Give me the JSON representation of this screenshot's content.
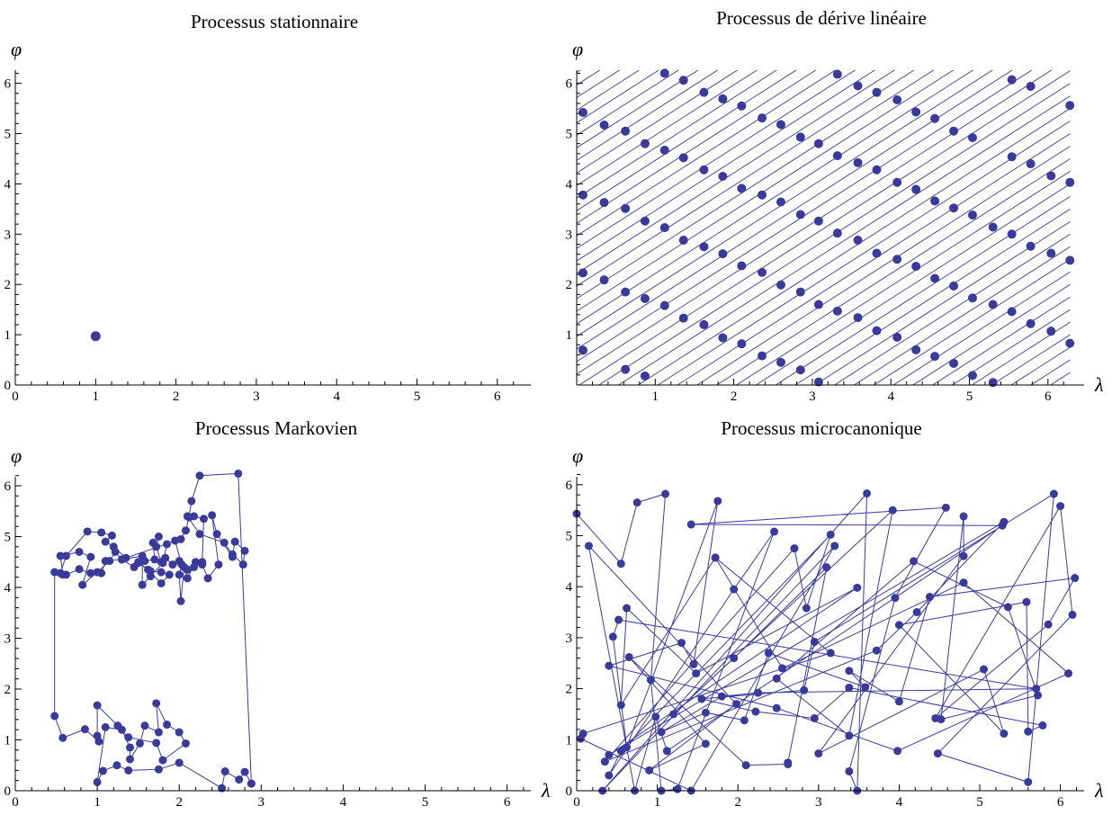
{
  "colors": {
    "series": "#3a3a9a",
    "axis": "#000000"
  },
  "chart_data": [
    {
      "type": "scatter",
      "title": "Processus stationnaire",
      "xlabel": "",
      "ylabel": "φ",
      "xlim": [
        0,
        6.283
      ],
      "ylim": [
        0,
        6.283
      ],
      "xticks": [
        "0",
        "1",
        "2",
        "3",
        "4",
        "5",
        "6"
      ],
      "yticks": [
        "0",
        "1",
        "2",
        "3",
        "4",
        "5",
        "6"
      ],
      "connected": false,
      "points": [
        [
          1.0,
          0.97
        ]
      ]
    },
    {
      "type": "scatter",
      "title": "Processus de dérive linéaire",
      "xlabel": "λ",
      "ylabel": "φ",
      "xlim": [
        0,
        6.283
      ],
      "ylim": [
        0,
        6.283
      ],
      "xticks": [
        "1",
        "2",
        "3",
        "4",
        "5",
        "6"
      ],
      "yticks": [
        "1",
        "2",
        "3",
        "4",
        "5",
        "6"
      ],
      "connected": false,
      "drift_slope": 1,
      "drift_step": 0.25,
      "points": [
        [
          0.08,
          5.42
        ],
        [
          0.08,
          3.78
        ],
        [
          0.08,
          2.23
        ],
        [
          0.08,
          0.69
        ],
        [
          0.35,
          5.17
        ],
        [
          0.35,
          3.63
        ],
        [
          0.35,
          2.09
        ],
        [
          0.62,
          5.05
        ],
        [
          0.62,
          3.51
        ],
        [
          0.62,
          1.85
        ],
        [
          0.62,
          0.31
        ],
        [
          0.87,
          4.8
        ],
        [
          0.87,
          3.26
        ],
        [
          0.87,
          1.72
        ],
        [
          0.87,
          0.18
        ],
        [
          1.12,
          6.2
        ],
        [
          1.12,
          4.67
        ],
        [
          1.12,
          3.13
        ],
        [
          1.12,
          1.58
        ],
        [
          1.36,
          6.06
        ],
        [
          1.36,
          4.52
        ],
        [
          1.36,
          2.88
        ],
        [
          1.36,
          1.33
        ],
        [
          1.62,
          5.82
        ],
        [
          1.62,
          4.28
        ],
        [
          1.62,
          2.75
        ],
        [
          1.62,
          1.2
        ],
        [
          1.86,
          5.69
        ],
        [
          1.86,
          4.15
        ],
        [
          1.86,
          2.61
        ],
        [
          1.86,
          0.94
        ],
        [
          2.1,
          5.55
        ],
        [
          2.1,
          3.91
        ],
        [
          2.1,
          2.37
        ],
        [
          2.1,
          0.82
        ],
        [
          2.36,
          5.31
        ],
        [
          2.36,
          3.78
        ],
        [
          2.36,
          2.24
        ],
        [
          2.36,
          0.58
        ],
        [
          2.6,
          5.18
        ],
        [
          2.6,
          3.64
        ],
        [
          2.6,
          1.99
        ],
        [
          2.6,
          0.45
        ],
        [
          2.85,
          4.93
        ],
        [
          2.85,
          3.39
        ],
        [
          2.85,
          1.85
        ],
        [
          2.85,
          0.3
        ],
        [
          3.08,
          4.8
        ],
        [
          3.08,
          3.26
        ],
        [
          3.08,
          1.6
        ],
        [
          3.08,
          0.06
        ],
        [
          3.32,
          6.18
        ],
        [
          3.32,
          4.56
        ],
        [
          3.32,
          3.02
        ],
        [
          3.32,
          1.47
        ],
        [
          3.58,
          5.95
        ],
        [
          3.58,
          4.42
        ],
        [
          3.58,
          2.88
        ],
        [
          3.58,
          1.34
        ],
        [
          3.82,
          5.82
        ],
        [
          3.82,
          4.28
        ],
        [
          3.82,
          2.62
        ],
        [
          3.82,
          1.08
        ],
        [
          4.08,
          5.67
        ],
        [
          4.08,
          4.03
        ],
        [
          4.08,
          2.5
        ],
        [
          4.08,
          0.95
        ],
        [
          4.32,
          5.43
        ],
        [
          4.32,
          3.89
        ],
        [
          4.32,
          2.36
        ],
        [
          4.32,
          0.7
        ],
        [
          4.56,
          5.3
        ],
        [
          4.56,
          3.66
        ],
        [
          4.56,
          2.12
        ],
        [
          4.56,
          0.57
        ],
        [
          4.8,
          5.05
        ],
        [
          4.8,
          3.52
        ],
        [
          4.8,
          1.97
        ],
        [
          4.8,
          0.43
        ],
        [
          5.04,
          4.92
        ],
        [
          5.04,
          3.38
        ],
        [
          5.04,
          1.73
        ],
        [
          5.04,
          0.19
        ],
        [
          5.3,
          3.14
        ],
        [
          5.3,
          1.6
        ],
        [
          5.3,
          0.05
        ],
        [
          5.54,
          6.07
        ],
        [
          5.54,
          4.54
        ],
        [
          5.54,
          3.0
        ],
        [
          5.54,
          1.46
        ],
        [
          5.78,
          5.94
        ],
        [
          5.78,
          4.4
        ],
        [
          5.78,
          2.76
        ],
        [
          5.78,
          1.22
        ],
        [
          6.04,
          4.16
        ],
        [
          6.04,
          2.62
        ],
        [
          6.04,
          1.07
        ],
        [
          6.28,
          5.56
        ],
        [
          6.28,
          4.03
        ],
        [
          6.28,
          2.48
        ],
        [
          6.28,
          0.83
        ]
      ]
    },
    {
      "type": "line",
      "title": "Processus Markovien",
      "xlabel": "λ",
      "ylabel": "φ",
      "xlim": [
        0,
        6.283
      ],
      "ylim": [
        0,
        6.283
      ],
      "xticks": [
        "0",
        "1",
        "2",
        "3",
        "4",
        "5",
        "6"
      ],
      "yticks": [
        "0",
        "1",
        "2",
        "3",
        "4",
        "5",
        "6"
      ],
      "connected": true,
      "points": [
        [
          2.88,
          0.14
        ],
        [
          2.8,
          0.37
        ],
        [
          2.73,
          0.22
        ],
        [
          2.56,
          0.38
        ],
        [
          2.52,
          0.05
        ],
        [
          2.0,
          0.55
        ],
        [
          1.75,
          0.42
        ],
        [
          1.38,
          0.4
        ],
        [
          1.24,
          0.5
        ],
        [
          1.07,
          0.39
        ],
        [
          1.0,
          0.17
        ],
        [
          1.1,
          1.25
        ],
        [
          1.3,
          1.2
        ],
        [
          1.4,
          0.85
        ],
        [
          1.4,
          0.62
        ],
        [
          1.52,
          0.93
        ],
        [
          1.58,
          1.28
        ],
        [
          1.75,
          1.15
        ],
        [
          1.72,
          1.72
        ],
        [
          1.85,
          1.3
        ],
        [
          2.0,
          1.15
        ],
        [
          2.08,
          0.93
        ],
        [
          1.8,
          0.6
        ],
        [
          1.72,
          0.94
        ],
        [
          1.38,
          1.05
        ],
        [
          1.25,
          1.28
        ],
        [
          1.0,
          1.68
        ],
        [
          1.0,
          1.08
        ],
        [
          1.02,
          0.97
        ],
        [
          0.85,
          1.21
        ],
        [
          0.58,
          1.04
        ],
        [
          0.48,
          1.47
        ],
        [
          0.48,
          4.3
        ],
        [
          0.58,
          4.25
        ],
        [
          0.55,
          4.62
        ],
        [
          0.78,
          4.7
        ],
        [
          0.92,
          4.6
        ],
        [
          0.82,
          4.05
        ],
        [
          1.0,
          4.3
        ],
        [
          1.15,
          4.52
        ],
        [
          1.22,
          4.7
        ],
        [
          1.3,
          4.55
        ],
        [
          1.55,
          4.62
        ],
        [
          1.55,
          4.05
        ],
        [
          1.65,
          4.22
        ],
        [
          1.8,
          4.48
        ],
        [
          1.85,
          4.85
        ],
        [
          1.95,
          4.92
        ],
        [
          2.03,
          4.45
        ],
        [
          2.0,
          4.25
        ],
        [
          2.02,
          3.73
        ],
        [
          2.06,
          4.4
        ],
        [
          2.1,
          4.18
        ],
        [
          2.2,
          4.5
        ],
        [
          2.28,
          4.45
        ],
        [
          2.35,
          4.18
        ],
        [
          2.48,
          4.45
        ],
        [
          2.4,
          5.42
        ],
        [
          2.46,
          5.05
        ],
        [
          2.65,
          4.6
        ],
        [
          2.68,
          4.9
        ],
        [
          2.8,
          4.72
        ],
        [
          2.78,
          4.45
        ],
        [
          2.65,
          4.65
        ],
        [
          2.55,
          4.88
        ],
        [
          2.25,
          5.05
        ],
        [
          2.1,
          5.4
        ],
        [
          2.18,
          5.4
        ],
        [
          2.3,
          5.35
        ],
        [
          2.28,
          4.5
        ],
        [
          2.18,
          4.4
        ],
        [
          2.1,
          4.35
        ],
        [
          2.0,
          4.52
        ],
        [
          1.92,
          4.45
        ],
        [
          1.83,
          4.58
        ],
        [
          1.78,
          4.5
        ],
        [
          1.72,
          4.8
        ],
        [
          1.75,
          5.0
        ],
        [
          1.68,
          4.88
        ],
        [
          1.7,
          4.55
        ],
        [
          1.58,
          4.52
        ],
        [
          1.5,
          4.5
        ],
        [
          1.62,
          4.35
        ],
        [
          1.78,
          4.08
        ],
        [
          1.88,
          4.25
        ],
        [
          1.78,
          4.3
        ],
        [
          1.65,
          4.32
        ],
        [
          1.5,
          4.48
        ],
        [
          1.45,
          4.4
        ],
        [
          1.3,
          4.55
        ],
        [
          1.1,
          4.52
        ],
        [
          1.05,
          4.28
        ],
        [
          0.92,
          4.28
        ],
        [
          0.78,
          4.36
        ],
        [
          0.62,
          4.25
        ],
        [
          0.55,
          4.28
        ],
        [
          0.62,
          4.62
        ],
        [
          0.88,
          5.1
        ],
        [
          1.05,
          5.08
        ],
        [
          1.18,
          5.02
        ],
        [
          1.1,
          4.9
        ],
        [
          1.2,
          4.8
        ],
        [
          1.35,
          4.58
        ],
        [
          2.02,
          4.95
        ],
        [
          2.08,
          5.12
        ],
        [
          2.12,
          5.38
        ],
        [
          2.15,
          5.7
        ],
        [
          2.25,
          6.2
        ],
        [
          2.72,
          6.24
        ],
        [
          2.88,
          0.14
        ]
      ]
    },
    {
      "type": "line",
      "title": "Processus microcanonique",
      "xlabel": "λ",
      "ylabel": "φ",
      "xlim": [
        0,
        6.283
      ],
      "ylim": [
        0,
        6.283
      ],
      "xticks": [
        "0",
        "1",
        "2",
        "3",
        "4",
        "5",
        "6"
      ],
      "yticks": [
        "0",
        "1",
        "2",
        "3",
        "4",
        "5",
        "6"
      ],
      "connected": true,
      "points": [
        [
          0.0,
          5.43
        ],
        [
          0.55,
          4.45
        ],
        [
          0.75,
          5.65
        ],
        [
          1.1,
          5.82
        ],
        [
          0.92,
          2.17
        ],
        [
          1.05,
          0.0
        ],
        [
          1.25,
          0.03
        ],
        [
          2.45,
          5.08
        ],
        [
          1.95,
          3.95
        ],
        [
          0.4,
          0.3
        ],
        [
          0.55,
          0.78
        ],
        [
          3.15,
          5.02
        ],
        [
          2.85,
          3.58
        ],
        [
          2.7,
          4.75
        ],
        [
          0.35,
          0.57
        ],
        [
          3.72,
          2.75
        ],
        [
          4.22,
          3.5
        ],
        [
          5.3,
          5.27
        ],
        [
          0.4,
          0.7
        ],
        [
          3.48,
          3.98
        ],
        [
          1.48,
          2.3
        ],
        [
          0.62,
          3.58
        ],
        [
          0.55,
          1.68
        ],
        [
          1.72,
          4.57
        ],
        [
          3.15,
          2.7
        ],
        [
          0.08,
          1.12
        ],
        [
          0.05,
          1.02
        ],
        [
          1.42,
          0.0
        ],
        [
          3.2,
          4.8
        ],
        [
          0.32,
          0.0
        ],
        [
          3.6,
          5.83
        ],
        [
          3.48,
          0.0
        ],
        [
          3.38,
          0.38
        ],
        [
          3.95,
          3.78
        ],
        [
          4.58,
          5.55
        ],
        [
          1.42,
          5.22
        ],
        [
          5.28,
          5.2
        ],
        [
          1.12,
          0.78
        ],
        [
          0.98,
          1.45
        ],
        [
          0.72,
          0.0
        ],
        [
          0.15,
          4.8
        ],
        [
          1.98,
          1.7
        ],
        [
          0.9,
          0.4
        ],
        [
          1.6,
          0.92
        ],
        [
          0.65,
          2.62
        ],
        [
          2.1,
          0.5
        ],
        [
          2.62,
          0.52
        ],
        [
          2.62,
          0.55
        ],
        [
          3.1,
          4.38
        ],
        [
          1.95,
          2.6
        ],
        [
          1.2,
          1.5
        ],
        [
          3.92,
          5.5
        ],
        [
          3.38,
          1.08
        ],
        [
          2.48,
          2.2
        ],
        [
          4.18,
          4.5
        ],
        [
          5.35,
          3.6
        ],
        [
          5.72,
          1.87
        ],
        [
          4.52,
          1.4
        ],
        [
          4.8,
          5.38
        ],
        [
          4.8,
          4.6
        ],
        [
          3.0,
          0.73
        ],
        [
          5.05,
          2.38
        ],
        [
          5.3,
          1.12
        ],
        [
          4.0,
          3.25
        ],
        [
          5.58,
          3.7
        ],
        [
          5.6,
          1.16
        ],
        [
          5.78,
          1.28
        ],
        [
          3.38,
          2.02
        ],
        [
          2.95,
          1.42
        ],
        [
          2.22,
          1.55
        ],
        [
          1.55,
          1.8
        ],
        [
          2.82,
          1.97
        ],
        [
          2.95,
          2.92
        ],
        [
          5.92,
          5.82
        ],
        [
          5.6,
          0.17
        ],
        [
          4.48,
          0.73
        ],
        [
          6.15,
          3.45
        ],
        [
          6.0,
          5.58
        ],
        [
          4.45,
          1.42
        ],
        [
          5.85,
          3.26
        ],
        [
          6.18,
          4.17
        ],
        [
          4.38,
          3.8
        ],
        [
          4.0,
          1.75
        ],
        [
          3.38,
          2.35
        ],
        [
          3.58,
          2.03
        ],
        [
          2.38,
          2.7
        ],
        [
          2.08,
          1.38
        ],
        [
          1.6,
          1.53
        ],
        [
          1.05,
          1.15
        ],
        [
          1.8,
          1.85
        ],
        [
          2.25,
          1.92
        ],
        [
          5.7,
          2.0
        ],
        [
          0.52,
          3.35
        ],
        [
          0.45,
          3.02
        ],
        [
          0.62,
          0.85
        ],
        [
          1.75,
          5.68
        ],
        [
          1.45,
          2.48
        ],
        [
          1.3,
          2.9
        ],
        [
          0.4,
          2.45
        ],
        [
          2.48,
          1.62
        ],
        [
          3.98,
          0.78
        ],
        [
          6.1,
          2.3
        ],
        [
          4.8,
          4.08
        ],
        [
          2.55,
          2.4
        ],
        [
          1.72,
          4.57
        ]
      ]
    }
  ]
}
